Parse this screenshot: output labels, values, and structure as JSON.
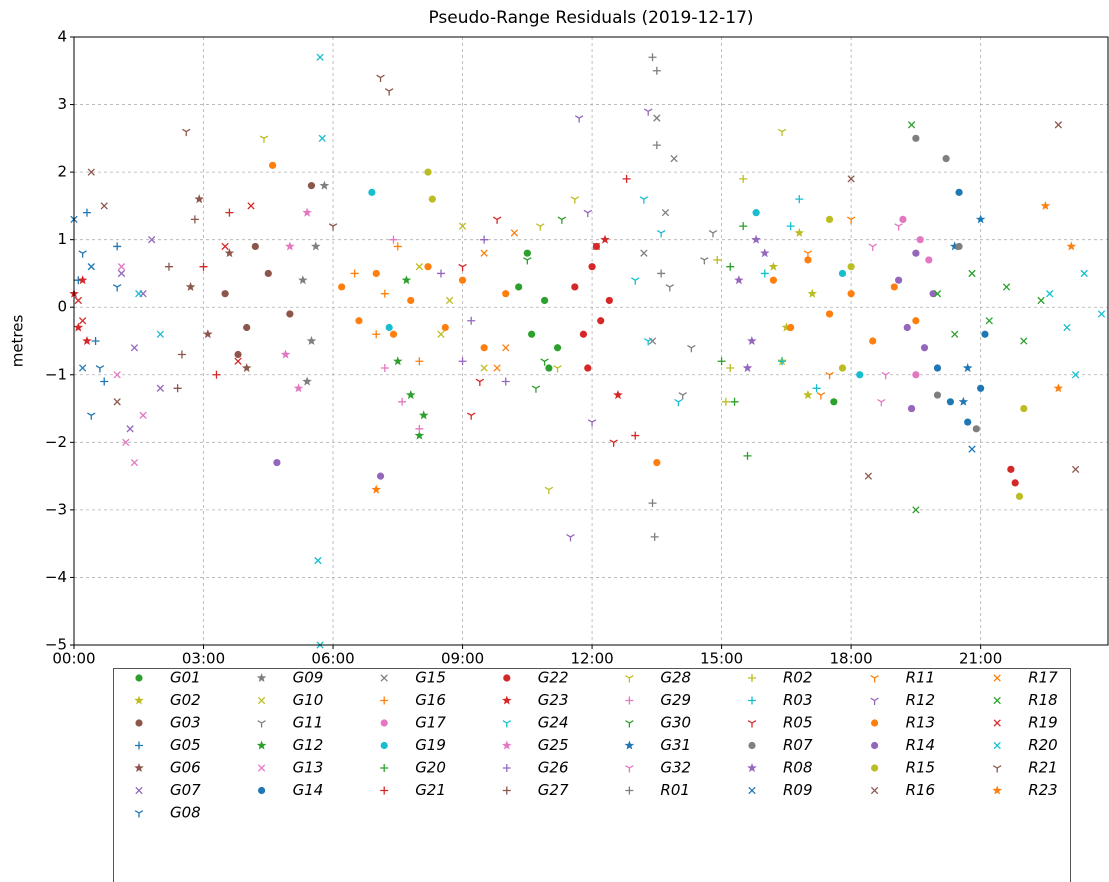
{
  "chart_data": {
    "type": "scatter",
    "title": "Pseudo-Range Residuals (2019-12-17)",
    "y_label": "metres",
    "xlim": [
      0,
      23.95
    ],
    "ylim": [
      -5,
      4
    ],
    "xticks": [
      {
        "value": 0,
        "label": "00:00"
      },
      {
        "value": 3,
        "label": "03:00"
      },
      {
        "value": 6,
        "label": "06:00"
      },
      {
        "value": 9,
        "label": "09:00"
      },
      {
        "value": 12,
        "label": "12:00"
      },
      {
        "value": 15,
        "label": "15:00"
      },
      {
        "value": 18,
        "label": "18:00"
      },
      {
        "value": 21,
        "label": "21:00"
      }
    ],
    "yticks": [
      {
        "value": -5,
        "label": "−5"
      },
      {
        "value": -4,
        "label": "−4"
      },
      {
        "value": -3,
        "label": "−3"
      },
      {
        "value": -2,
        "label": "−2"
      },
      {
        "value": -1,
        "label": "−1"
      },
      0,
      1,
      2,
      3,
      4
    ],
    "grid": true,
    "legend": "below",
    "series": [
      {
        "name": "G01",
        "color": "#2ca02c",
        "marker": "o",
        "x": [
          10.3,
          10.6,
          10.9,
          11.2,
          10.5,
          11.0,
          17.6
        ],
        "values": [
          0.3,
          -0.4,
          0.1,
          -0.6,
          0.8,
          -0.9,
          -1.4
        ]
      },
      {
        "name": "G02",
        "color": "#bcbd22",
        "marker": "*",
        "x": [
          16.2,
          16.5,
          16.8,
          17.1,
          16.4,
          17.0
        ],
        "values": [
          0.6,
          -0.3,
          1.1,
          0.2,
          -0.8,
          -1.3
        ]
      },
      {
        "name": "G03",
        "color": "#8c564b",
        "marker": "o",
        "x": [
          3.5,
          4.0,
          4.5,
          5.0,
          4.2,
          3.8,
          5.5
        ],
        "values": [
          0.2,
          -0.3,
          0.5,
          -0.1,
          0.9,
          -0.7,
          1.8
        ]
      },
      {
        "name": "G05",
        "color": "#1f77b4",
        "marker": "+",
        "x": [
          0.1,
          0.5,
          1.0,
          0.3,
          0.7
        ],
        "values": [
          0.4,
          -0.5,
          0.9,
          1.4,
          -1.1
        ]
      },
      {
        "name": "G06",
        "color": "#8c564b",
        "marker": "*",
        "x": [
          2.7,
          3.1,
          3.6,
          4.0,
          2.9
        ],
        "values": [
          0.3,
          -0.4,
          0.8,
          -0.9,
          1.6
        ]
      },
      {
        "name": "G07",
        "color": "#9467bd",
        "marker": "x",
        "x": [
          1.1,
          1.4,
          1.8,
          2.0,
          1.3,
          1.6
        ],
        "values": [
          0.5,
          -0.6,
          1.0,
          -1.2,
          -1.8,
          0.2
        ]
      },
      {
        "name": "G08",
        "color": "#1f77b4",
        "marker": "1",
        "x": [
          0.2,
          0.6,
          1.0,
          0.4
        ],
        "values": [
          0.8,
          -0.9,
          0.3,
          -1.6
        ]
      },
      {
        "name": "G09",
        "color": "#7f7f7f",
        "marker": "*",
        "x": [
          5.3,
          5.5,
          5.8,
          5.4,
          5.6
        ],
        "values": [
          0.4,
          -0.5,
          1.8,
          -1.1,
          0.9
        ]
      },
      {
        "name": "G10",
        "color": "#bcbd22",
        "marker": "x",
        "x": [
          8.0,
          8.5,
          9.0,
          9.5,
          8.7
        ],
        "values": [
          0.6,
          -0.4,
          1.2,
          -0.9,
          0.1
        ]
      },
      {
        "name": "G11",
        "color": "#7f7f7f",
        "marker": "1",
        "x": [
          13.8,
          14.3,
          14.8,
          14.1,
          14.6
        ],
        "values": [
          0.3,
          -0.6,
          1.1,
          -1.3,
          0.7
        ]
      },
      {
        "name": "G12",
        "color": "#2ca02c",
        "marker": "*",
        "x": [
          7.5,
          7.8,
          8.1,
          7.7,
          8.0
        ],
        "values": [
          -0.8,
          -1.3,
          -1.6,
          0.4,
          -1.9
        ]
      },
      {
        "name": "G13",
        "color": "#e377c2",
        "marker": "x",
        "x": [
          1.0,
          1.2,
          1.4,
          1.1,
          1.6
        ],
        "values": [
          -1.0,
          -2.0,
          -2.3,
          0.6,
          -1.6
        ]
      },
      {
        "name": "G14",
        "color": "#1f77b4",
        "marker": "o",
        "x": [
          20.0,
          20.3,
          20.7,
          21.0,
          20.5,
          21.1
        ],
        "values": [
          -0.9,
          -1.4,
          -1.7,
          -1.2,
          1.7,
          -0.4
        ]
      },
      {
        "name": "G15",
        "color": "#7f7f7f",
        "marker": "x",
        "x": [
          13.2,
          13.5,
          13.7,
          13.4,
          13.9
        ],
        "values": [
          0.8,
          2.8,
          1.4,
          -0.5,
          2.2
        ]
      },
      {
        "name": "G16",
        "color": "#ff7f0e",
        "marker": "+",
        "x": [
          6.5,
          7.0,
          7.5,
          8.0,
          7.2
        ],
        "values": [
          0.5,
          -0.4,
          0.9,
          -0.8,
          0.2
        ]
      },
      {
        "name": "G17",
        "color": "#e377c2",
        "marker": "o",
        "x": [
          19.2,
          19.5,
          19.8,
          19.4,
          19.6
        ],
        "values": [
          1.3,
          -1.0,
          0.7,
          -1.5,
          1.0
        ]
      },
      {
        "name": "G19",
        "color": "#17becf",
        "marker": "o",
        "x": [
          6.9,
          7.3,
          15.8,
          17.8,
          18.2
        ],
        "values": [
          1.7,
          -0.3,
          1.4,
          0.5,
          -1.0
        ]
      },
      {
        "name": "G20",
        "color": "#2ca02c",
        "marker": "+",
        "x": [
          15.0,
          15.3,
          15.6,
          15.2,
          15.5
        ],
        "values": [
          -0.8,
          -1.4,
          -2.2,
          0.6,
          1.2
        ]
      },
      {
        "name": "G21",
        "color": "#d62728",
        "marker": "+",
        "x": [
          3.0,
          3.3,
          3.6,
          12.8,
          13.0
        ],
        "values": [
          0.6,
          -1.0,
          1.4,
          1.9,
          -1.9
        ]
      },
      {
        "name": "G22",
        "color": "#d62728",
        "marker": "o",
        "x": [
          11.6,
          11.8,
          12.0,
          12.2,
          12.4,
          11.9,
          12.1,
          21.7,
          21.8
        ],
        "values": [
          0.3,
          -0.4,
          0.6,
          -0.2,
          0.1,
          -0.9,
          0.9,
          -2.4,
          -2.6
        ]
      },
      {
        "name": "G23",
        "color": "#d62728",
        "marker": "*",
        "x": [
          0.0,
          0.1,
          0.2,
          0.3,
          12.3,
          12.6
        ],
        "values": [
          0.2,
          -0.3,
          0.4,
          -0.5,
          1.0,
          -1.3
        ]
      },
      {
        "name": "G24",
        "color": "#17becf",
        "marker": "1",
        "x": [
          13.0,
          13.3,
          13.6,
          14.0,
          13.2
        ],
        "values": [
          0.4,
          -0.5,
          1.1,
          -1.4,
          1.6
        ]
      },
      {
        "name": "G25",
        "color": "#e377c2",
        "marker": "*",
        "x": [
          5.0,
          5.2,
          5.4,
          4.9
        ],
        "values": [
          0.9,
          -1.2,
          1.4,
          -0.7
        ]
      },
      {
        "name": "G26",
        "color": "#9467bd",
        "marker": "+",
        "x": [
          8.5,
          9.0,
          9.5,
          10.0,
          9.2
        ],
        "values": [
          0.5,
          -0.8,
          1.0,
          -1.1,
          -0.2
        ]
      },
      {
        "name": "G27",
        "color": "#8c564b",
        "marker": "+",
        "x": [
          2.2,
          2.5,
          2.8,
          2.4
        ],
        "values": [
          0.6,
          -0.7,
          1.3,
          -1.2
        ]
      },
      {
        "name": "G28",
        "color": "#bcbd22",
        "marker": "1",
        "x": [
          10.8,
          11.2,
          11.6,
          11.0,
          4.4,
          16.4
        ],
        "values": [
          1.2,
          -0.9,
          1.6,
          -2.7,
          2.5,
          2.6
        ]
      },
      {
        "name": "G29",
        "color": "#e377c2",
        "marker": "+",
        "x": [
          7.2,
          7.6,
          8.0,
          7.4
        ],
        "values": [
          -0.9,
          -1.4,
          -1.8,
          1.0
        ]
      },
      {
        "name": "G30",
        "color": "#2ca02c",
        "marker": "1",
        "x": [
          10.5,
          10.9,
          11.3,
          10.7
        ],
        "values": [
          0.7,
          -0.8,
          1.3,
          -1.2
        ]
      },
      {
        "name": "G31",
        "color": "#1f77b4",
        "marker": "*",
        "x": [
          20.4,
          20.7,
          21.0,
          20.6
        ],
        "values": [
          0.9,
          -0.9,
          1.3,
          -1.4
        ]
      },
      {
        "name": "G32",
        "color": "#e377c2",
        "marker": "1",
        "x": [
          18.5,
          18.8,
          19.1,
          18.7
        ],
        "values": [
          0.9,
          -1.0,
          1.2,
          -1.4
        ]
      },
      {
        "name": "R01",
        "color": "#7f7f7f",
        "marker": "+",
        "x": [
          13.4,
          13.5,
          13.45,
          13.5,
          13.4,
          13.6
        ],
        "values": [
          3.7,
          3.5,
          -3.4,
          2.4,
          -2.9,
          0.5
        ]
      },
      {
        "name": "R02",
        "color": "#bcbd22",
        "marker": "+",
        "x": [
          14.9,
          15.2,
          15.5,
          15.1
        ],
        "values": [
          0.7,
          -0.9,
          1.9,
          -1.4
        ]
      },
      {
        "name": "R03",
        "color": "#17becf",
        "marker": "+",
        "x": [
          16.0,
          16.4,
          16.8,
          17.2,
          16.6
        ],
        "values": [
          0.5,
          -0.8,
          1.6,
          -1.2,
          1.2
        ]
      },
      {
        "name": "R05",
        "color": "#d62728",
        "marker": "1",
        "x": [
          9.0,
          9.4,
          9.8,
          9.2,
          12.5
        ],
        "values": [
          0.6,
          -1.1,
          1.3,
          -1.6,
          -2.0
        ]
      },
      {
        "name": "R07",
        "color": "#7f7f7f",
        "marker": "o",
        "x": [
          19.5,
          20.0,
          20.2,
          20.5,
          20.9
        ],
        "values": [
          2.5,
          -1.3,
          2.2,
          0.9,
          -1.8
        ]
      },
      {
        "name": "R08",
        "color": "#9467bd",
        "marker": "*",
        "x": [
          15.4,
          15.7,
          16.0,
          15.6,
          15.8
        ],
        "values": [
          0.4,
          -0.5,
          0.8,
          -0.9,
          1.0
        ]
      },
      {
        "name": "R09",
        "color": "#1f77b4",
        "marker": "x",
        "x": [
          0.0,
          0.2,
          20.8,
          0.4
        ],
        "values": [
          1.3,
          -0.9,
          -2.1,
          0.6
        ]
      },
      {
        "name": "R11",
        "color": "#ff7f0e",
        "marker": "1",
        "x": [
          17.0,
          17.5,
          18.0,
          17.3
        ],
        "values": [
          0.8,
          -1.0,
          1.3,
          -1.3
        ]
      },
      {
        "name": "R12",
        "color": "#9467bd",
        "marker": "1",
        "x": [
          11.5,
          11.7,
          12.0,
          13.3,
          11.9
        ],
        "values": [
          -3.4,
          2.8,
          -1.7,
          2.9,
          1.4
        ]
      },
      {
        "name": "R13",
        "color": "#ff7f0e",
        "marker": "o",
        "x": [
          6.2,
          6.6,
          7.0,
          7.4,
          7.8,
          8.2,
          8.6,
          9.0,
          9.5,
          10.0,
          13.5,
          16.2,
          16.6,
          17.0,
          17.5,
          18.0,
          18.5,
          19.0,
          19.5,
          4.6
        ],
        "values": [
          0.3,
          -0.2,
          0.5,
          -0.4,
          0.1,
          0.6,
          -0.3,
          0.4,
          -0.6,
          0.2,
          -2.3,
          0.4,
          -0.3,
          0.7,
          -0.1,
          0.2,
          -0.5,
          0.3,
          -0.2,
          2.1
        ]
      },
      {
        "name": "R14",
        "color": "#9467bd",
        "marker": "o",
        "x": [
          19.1,
          19.3,
          19.5,
          19.7,
          19.9,
          19.4,
          7.1,
          4.7
        ],
        "values": [
          0.4,
          -0.3,
          0.8,
          -0.6,
          0.2,
          -1.5,
          -2.5,
          -2.3
        ]
      },
      {
        "name": "R15",
        "color": "#bcbd22",
        "marker": "o",
        "x": [
          8.2,
          8.3,
          17.5,
          18.0,
          21.9,
          22.0,
          17.8
        ],
        "values": [
          2.0,
          1.6,
          1.3,
          0.6,
          -2.8,
          -1.5,
          -0.9
        ]
      },
      {
        "name": "R16",
        "color": "#8c564b",
        "marker": "x",
        "x": [
          0.4,
          0.7,
          1.0,
          18.0,
          18.4,
          22.8,
          23.2
        ],
        "values": [
          2.0,
          1.5,
          -1.4,
          1.9,
          -2.5,
          2.7,
          -2.4
        ]
      },
      {
        "name": "R17",
        "color": "#ff7f0e",
        "marker": "x",
        "x": [
          9.5,
          10.0,
          10.2,
          9.8
        ],
        "values": [
          0.8,
          -0.6,
          1.1,
          -0.9
        ]
      },
      {
        "name": "R18",
        "color": "#2ca02c",
        "marker": "x",
        "x": [
          20.0,
          20.4,
          20.8,
          21.2,
          21.6,
          22.0,
          22.4,
          19.4,
          19.5
        ],
        "values": [
          0.2,
          -0.4,
          0.5,
          -0.2,
          0.3,
          -0.5,
          0.1,
          2.7,
          -3.0
        ]
      },
      {
        "name": "R19",
        "color": "#d62728",
        "marker": "x",
        "x": [
          0.1,
          0.2,
          3.5,
          3.8,
          4.1,
          12.1
        ],
        "values": [
          0.1,
          -0.2,
          0.9,
          -0.8,
          1.5,
          0.9
        ]
      },
      {
        "name": "R20",
        "color": "#17becf",
        "marker": "x",
        "x": [
          5.7,
          5.7,
          5.65,
          5.75,
          22.6,
          23.0,
          23.4,
          23.8,
          23.2,
          1.5,
          2.0
        ],
        "values": [
          3.7,
          -5.0,
          -3.75,
          2.5,
          0.2,
          -0.3,
          0.5,
          -0.1,
          -1.0,
          0.2,
          -0.4
        ]
      },
      {
        "name": "R21",
        "color": "#8c564b",
        "marker": "1",
        "x": [
          7.1,
          7.3,
          2.6,
          6.0
        ],
        "values": [
          3.4,
          3.2,
          2.6,
          1.2
        ]
      },
      {
        "name": "R23",
        "color": "#ff7f0e",
        "marker": "*",
        "x": [
          7.0,
          22.5,
          22.8,
          23.1
        ],
        "values": [
          -2.7,
          1.5,
          -1.2,
          0.9
        ]
      }
    ]
  }
}
